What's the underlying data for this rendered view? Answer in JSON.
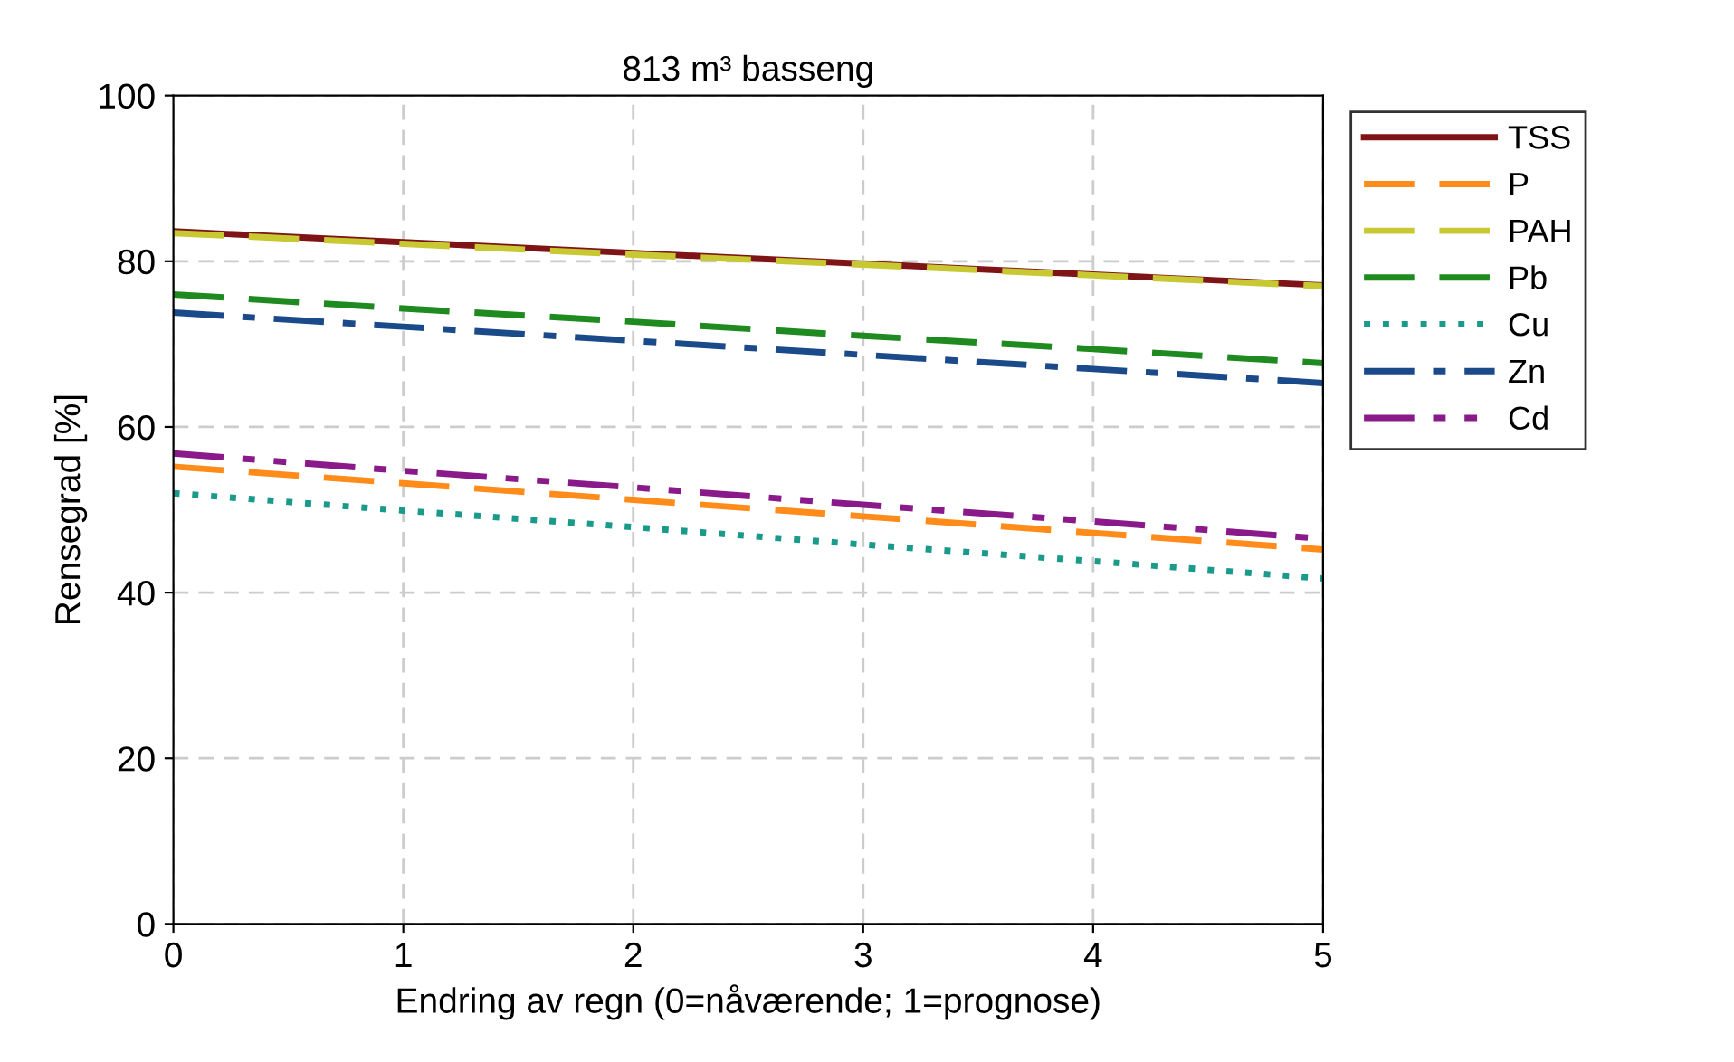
{
  "chart_data": {
    "type": "line",
    "title": "813 m³ basseng",
    "xlabel": "Endring av regn (0=nåværende; 1=prognose)",
    "ylabel": "Rensegrad [%]",
    "xlim": [
      0,
      5
    ],
    "xticks": [
      0,
      1,
      2,
      3,
      4,
      5
    ],
    "ylim": [
      0,
      100
    ],
    "yticks": [
      0,
      20,
      40,
      60,
      80,
      100
    ],
    "grid": true,
    "legend": "right",
    "marker": "none",
    "x": [
      0,
      1,
      2,
      3,
      4,
      5
    ],
    "series": [
      {
        "name": "TSS",
        "color": "#7f1416",
        "values": [
          83.6,
          82.3,
          81.0,
          79.7,
          78.4,
          77.1
        ],
        "line_style": "solid"
      },
      {
        "name": "P",
        "color": "#ff8c1a",
        "values": [
          55.2,
          53.2,
          51.2,
          49.2,
          47.2,
          45.2
        ],
        "line_style": "dashed"
      },
      {
        "name": "PAH",
        "color": "#c8c832",
        "values": [
          83.4,
          82.1,
          80.8,
          79.6,
          78.3,
          77.0
        ],
        "line_style": "dashed"
      },
      {
        "name": "Pb",
        "color": "#1f8a1f",
        "values": [
          76.0,
          74.3,
          72.7,
          71.0,
          69.4,
          67.7
        ],
        "line_style": "dashed"
      },
      {
        "name": "Cu",
        "color": "#1a9a8a",
        "values": [
          52.0,
          49.9,
          47.9,
          45.8,
          43.8,
          41.7
        ],
        "line_style": "dotted"
      },
      {
        "name": "Zn",
        "color": "#1a4a8a",
        "values": [
          73.8,
          72.1,
          70.4,
          68.7,
          67.0,
          65.3
        ],
        "line_style": "dashdot"
      },
      {
        "name": "Cd",
        "color": "#8a1a8a",
        "values": [
          56.8,
          54.7,
          52.7,
          50.6,
          48.6,
          46.5
        ],
        "line_style": "dashdotdot"
      }
    ]
  }
}
